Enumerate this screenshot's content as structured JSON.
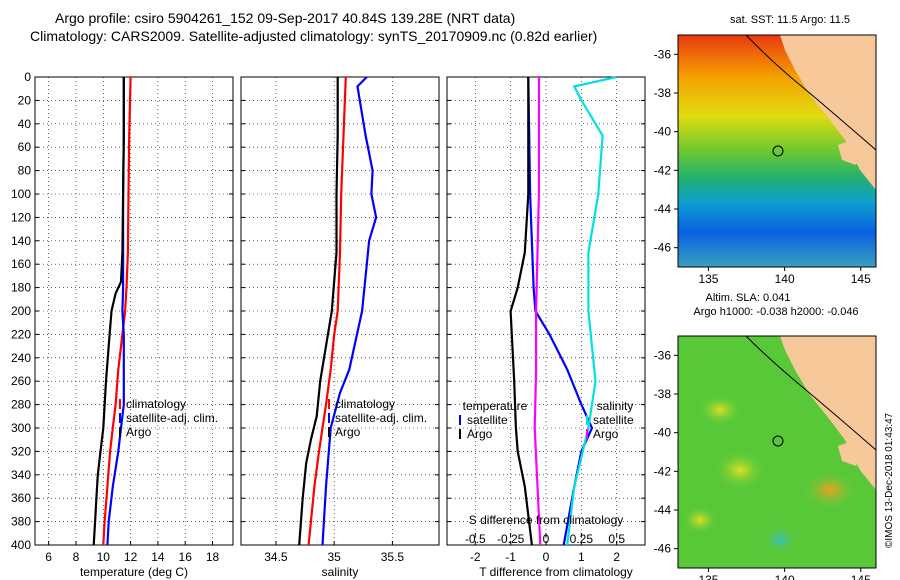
{
  "header": {
    "line1": "Argo profile: csiro 5904261_152 09-Sep-2017 40.84S 139.28E (NRT data)",
    "line2": "Climatology: CARS2009. Satellite-adjusted climatology: synTS_20170909.nc (0.82d earlier)"
  },
  "maps": {
    "sst_title": "sat. SST: 11.5 Argo: 11.5",
    "sla_title1": "Altim. SLA: 0.041",
    "sla_title2": "Argo h1000: -0.038 h2000: -0.046",
    "lat_ticks": [
      "-36",
      "-38",
      "-40",
      "-42",
      "-44",
      "-46"
    ],
    "lon_ticks": [
      "135",
      "140",
      "145"
    ],
    "float_lat": -40.84,
    "float_lon": 139.28,
    "lon_range": [
      133,
      146
    ],
    "lat_range": [
      -35,
      -47
    ]
  },
  "credit": "©IMOS 13-Dec-2018 01:43:47",
  "colors": {
    "climatology": "#ff0000",
    "satellite": "#0000ff",
    "argo": "#000000",
    "s_sat": "#00e0e0",
    "s_clim": "#ff00ff"
  },
  "chart_data": [
    {
      "type": "line",
      "name": "temperature",
      "xlabel": "temperature (deg C)",
      "ylabel": "",
      "xlim": [
        5,
        19.5
      ],
      "ylim": [
        400,
        0
      ],
      "xticks": [
        "6",
        "8",
        "10",
        "12",
        "14",
        "16",
        "18"
      ],
      "yticks": [
        "0",
        "20",
        "40",
        "60",
        "80",
        "100",
        "120",
        "140",
        "160",
        "180",
        "200",
        "220",
        "240",
        "260",
        "280",
        "300",
        "320",
        "340",
        "360",
        "380",
        "400"
      ],
      "legend": [
        "climatology",
        "satellite-adj. clim.",
        "Argo"
      ],
      "series": [
        {
          "name": "climatology",
          "depth": [
            0,
            50,
            100,
            150,
            180,
            200,
            220,
            250,
            280,
            300,
            320,
            350,
            380,
            400
          ],
          "values": [
            12.0,
            11.9,
            11.85,
            11.8,
            11.7,
            11.6,
            11.4,
            11.1,
            10.9,
            10.7,
            10.5,
            10.3,
            10.1,
            10.0
          ]
        },
        {
          "name": "satellite-adj. clim.",
          "depth": [
            0,
            50,
            100,
            150,
            180,
            200,
            220,
            260,
            280,
            300,
            320,
            350,
            380,
            400
          ],
          "values": [
            11.5,
            11.5,
            11.45,
            11.45,
            11.45,
            11.4,
            11.5,
            11.5,
            11.5,
            11.3,
            11.1,
            10.7,
            10.4,
            10.3
          ]
        },
        {
          "name": "Argo",
          "depth": [
            0,
            50,
            100,
            150,
            175,
            185,
            200,
            230,
            260,
            300,
            320,
            340,
            360,
            380,
            400
          ],
          "values": [
            11.5,
            11.5,
            11.45,
            11.4,
            11.3,
            10.9,
            10.6,
            10.4,
            10.2,
            10.0,
            9.8,
            9.6,
            9.5,
            9.4,
            9.3
          ]
        }
      ]
    },
    {
      "type": "line",
      "name": "salinity",
      "xlabel": "salinity",
      "xlim": [
        34.2,
        35.9
      ],
      "ylim": [
        400,
        0
      ],
      "xticks": [
        "34.5",
        "35",
        "35.5"
      ],
      "legend": [
        "climatology",
        "satellite-adj. clim.",
        "Argo"
      ],
      "series": [
        {
          "name": "climatology",
          "depth": [
            0,
            50,
            100,
            150,
            200,
            220,
            250,
            280,
            300,
            320,
            350,
            380,
            400
          ],
          "values": [
            35.1,
            35.08,
            35.06,
            35.05,
            35.03,
            35.0,
            34.97,
            34.93,
            34.9,
            34.87,
            34.83,
            34.8,
            34.78
          ]
        },
        {
          "name": "satellite-adj. clim.",
          "depth": [
            0,
            8,
            20,
            50,
            80,
            100,
            120,
            140,
            160,
            200,
            250,
            270,
            300,
            350,
            400
          ],
          "values": [
            35.28,
            35.2,
            35.22,
            35.27,
            35.33,
            35.32,
            35.36,
            35.3,
            35.28,
            35.24,
            35.13,
            35.05,
            34.97,
            34.93,
            34.9
          ]
        },
        {
          "name": "Argo",
          "depth": [
            0,
            50,
            100,
            150,
            200,
            230,
            260,
            290,
            310,
            330,
            360,
            400
          ],
          "values": [
            35.03,
            35.03,
            35.02,
            35.02,
            34.98,
            34.93,
            34.88,
            34.85,
            34.8,
            34.76,
            34.73,
            34.7
          ]
        }
      ]
    },
    {
      "type": "line",
      "name": "difference",
      "xlabel": "T difference from climatology",
      "xlabel_top": "S difference from climatology",
      "xlim": [
        -2.8,
        2.8
      ],
      "ylim": [
        400,
        0
      ],
      "xticks": [
        "-2",
        "-1",
        "0",
        "1",
        "2"
      ],
      "sticks": [
        "-0.5",
        "-0.25",
        "0",
        "0.25",
        "0.5"
      ],
      "legend_t_title": "temperature",
      "legend_s_title": "salinity",
      "legend_t": [
        "satellite",
        "Argo"
      ],
      "legend_s": [
        "satellite",
        "Argo"
      ],
      "series": [
        {
          "name": "T satellite",
          "depth": [
            0,
            100,
            180,
            200,
            220,
            250,
            280,
            300,
            320,
            350,
            400
          ],
          "values": [
            -0.5,
            -0.45,
            -0.35,
            -0.3,
            0.1,
            0.6,
            1.0,
            1.3,
            1.0,
            0.8,
            0.5
          ]
        },
        {
          "name": "T Argo",
          "depth": [
            0,
            100,
            150,
            180,
            190,
            200,
            230,
            260,
            300,
            320,
            350,
            400
          ],
          "values": [
            -0.5,
            -0.5,
            -0.6,
            -0.8,
            -0.9,
            -1.0,
            -0.95,
            -0.9,
            -0.85,
            -0.8,
            -0.6,
            -0.4
          ]
        },
        {
          "name": "S satellite",
          "depth": [
            0,
            8,
            20,
            50,
            100,
            150,
            200,
            260,
            300,
            350,
            400
          ],
          "values": [
            0.5,
            0.2,
            0.25,
            0.4,
            0.37,
            0.3,
            0.3,
            0.35,
            0.3,
            0.2,
            0.15
          ]
        },
        {
          "name": "S Argo",
          "depth": [
            0,
            100,
            200,
            250,
            300,
            350,
            400
          ],
          "values": [
            -0.05,
            -0.05,
            -0.07,
            -0.07,
            -0.08,
            -0.06,
            -0.04
          ]
        }
      ]
    }
  ]
}
